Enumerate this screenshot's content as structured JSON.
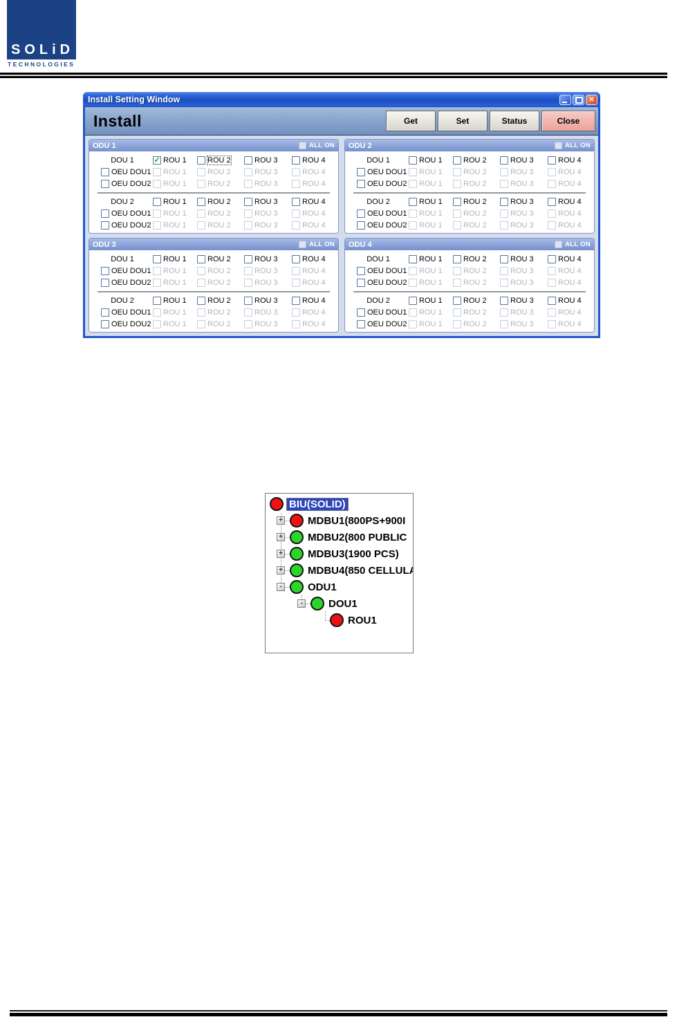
{
  "logo": {
    "brand": "SOLiD",
    "subtitle": "TECHNOLOGIES"
  },
  "window": {
    "title": "Install Setting Window",
    "heading": "Install",
    "toolbar": {
      "get": "Get",
      "set": "Set",
      "status": "Status",
      "close": "Close"
    },
    "panels": [
      {
        "title": "ODU 1",
        "all_on": "ALL ON",
        "groups": [
          {
            "dou": "DOU 1",
            "rou": [
              {
                "label": "ROU 1",
                "checked": true,
                "focused": false
              },
              {
                "label": "ROU 2",
                "checked": false,
                "focused": true
              },
              {
                "label": "ROU 3",
                "checked": false,
                "focused": false
              },
              {
                "label": "ROU 4",
                "checked": false,
                "focused": false
              }
            ],
            "oeu": [
              {
                "label": "OEU DOU1",
                "checked": false,
                "rou": [
                  {
                    "label": "ROU 1"
                  },
                  {
                    "label": "ROU 2"
                  },
                  {
                    "label": "ROU 3"
                  },
                  {
                    "label": "ROU 4"
                  }
                ]
              },
              {
                "label": "OEU DOU2",
                "checked": false,
                "rou": [
                  {
                    "label": "ROU 1"
                  },
                  {
                    "label": "ROU 2"
                  },
                  {
                    "label": "ROU 3"
                  },
                  {
                    "label": "ROU 4"
                  }
                ]
              }
            ]
          },
          {
            "dou": "DOU 2",
            "rou": [
              {
                "label": "ROU 1",
                "checked": false,
                "focused": false
              },
              {
                "label": "ROU 2",
                "checked": false,
                "focused": false
              },
              {
                "label": "ROU 3",
                "checked": false,
                "focused": false
              },
              {
                "label": "ROU 4",
                "checked": false,
                "focused": false
              }
            ],
            "oeu": [
              {
                "label": "OEU DOU1",
                "checked": false,
                "rou": [
                  {
                    "label": "ROU 1"
                  },
                  {
                    "label": "ROU 2"
                  },
                  {
                    "label": "ROU 3"
                  },
                  {
                    "label": "ROU 4"
                  }
                ]
              },
              {
                "label": "OEU DOU2",
                "checked": false,
                "rou": [
                  {
                    "label": "ROU 1"
                  },
                  {
                    "label": "ROU 2"
                  },
                  {
                    "label": "ROU 3"
                  },
                  {
                    "label": "ROU 4"
                  }
                ]
              }
            ]
          }
        ]
      },
      {
        "title": "ODU 2",
        "all_on": "ALL ON",
        "groups": [
          {
            "dou": "DOU 1",
            "rou": [
              {
                "label": "ROU 1",
                "checked": false,
                "focused": false
              },
              {
                "label": "ROU 2",
                "checked": false,
                "focused": false
              },
              {
                "label": "ROU 3",
                "checked": false,
                "focused": false
              },
              {
                "label": "ROU 4",
                "checked": false,
                "focused": false
              }
            ],
            "oeu": [
              {
                "label": "OEU DOU1",
                "checked": false,
                "rou": [
                  {
                    "label": "ROU 1"
                  },
                  {
                    "label": "ROU 2"
                  },
                  {
                    "label": "ROU 3"
                  },
                  {
                    "label": "ROU 4"
                  }
                ]
              },
              {
                "label": "OEU DOU2",
                "checked": false,
                "rou": [
                  {
                    "label": "ROU 1"
                  },
                  {
                    "label": "ROU 2"
                  },
                  {
                    "label": "ROU 3"
                  },
                  {
                    "label": "ROU 4"
                  }
                ]
              }
            ]
          },
          {
            "dou": "DOU 2",
            "rou": [
              {
                "label": "ROU 1",
                "checked": false,
                "focused": false
              },
              {
                "label": "ROU 2",
                "checked": false,
                "focused": false
              },
              {
                "label": "ROU 3",
                "checked": false,
                "focused": false
              },
              {
                "label": "ROU 4",
                "checked": false,
                "focused": false
              }
            ],
            "oeu": [
              {
                "label": "OEU DOU1",
                "checked": false,
                "rou": [
                  {
                    "label": "ROU 1"
                  },
                  {
                    "label": "ROU 2"
                  },
                  {
                    "label": "ROU 3"
                  },
                  {
                    "label": "ROU 4"
                  }
                ]
              },
              {
                "label": "OEU DOU2",
                "checked": false,
                "rou": [
                  {
                    "label": "ROU 1"
                  },
                  {
                    "label": "ROU 2"
                  },
                  {
                    "label": "ROU 3"
                  },
                  {
                    "label": "ROU 4"
                  }
                ]
              }
            ]
          }
        ]
      },
      {
        "title": "ODU 3",
        "all_on": "ALL ON",
        "groups": [
          {
            "dou": "DOU 1",
            "rou": [
              {
                "label": "ROU 1",
                "checked": false,
                "focused": false
              },
              {
                "label": "ROU 2",
                "checked": false,
                "focused": false
              },
              {
                "label": "ROU 3",
                "checked": false,
                "focused": false
              },
              {
                "label": "ROU 4",
                "checked": false,
                "focused": false
              }
            ],
            "oeu": [
              {
                "label": "OEU DOU1",
                "checked": false,
                "rou": [
                  {
                    "label": "ROU 1"
                  },
                  {
                    "label": "ROU 2"
                  },
                  {
                    "label": "ROU 3"
                  },
                  {
                    "label": "ROU 4"
                  }
                ]
              },
              {
                "label": "OEU DOU2",
                "checked": false,
                "rou": [
                  {
                    "label": "ROU 1"
                  },
                  {
                    "label": "ROU 2"
                  },
                  {
                    "label": "ROU 3"
                  },
                  {
                    "label": "ROU 4"
                  }
                ]
              }
            ]
          },
          {
            "dou": "DOU 2",
            "rou": [
              {
                "label": "ROU 1",
                "checked": false,
                "focused": false
              },
              {
                "label": "ROU 2",
                "checked": false,
                "focused": false
              },
              {
                "label": "ROU 3",
                "checked": false,
                "focused": false
              },
              {
                "label": "ROU 4",
                "checked": false,
                "focused": false
              }
            ],
            "oeu": [
              {
                "label": "OEU DOU1",
                "checked": false,
                "rou": [
                  {
                    "label": "ROU 1"
                  },
                  {
                    "label": "ROU 2"
                  },
                  {
                    "label": "ROU 3"
                  },
                  {
                    "label": "ROU 4"
                  }
                ]
              },
              {
                "label": "OEU DOU2",
                "checked": false,
                "rou": [
                  {
                    "label": "ROU 1"
                  },
                  {
                    "label": "ROU 2"
                  },
                  {
                    "label": "ROU 3"
                  },
                  {
                    "label": "ROU 4"
                  }
                ]
              }
            ]
          }
        ]
      },
      {
        "title": "ODU 4",
        "all_on": "ALL ON",
        "groups": [
          {
            "dou": "DOU 1",
            "rou": [
              {
                "label": "ROU 1",
                "checked": false,
                "focused": false
              },
              {
                "label": "ROU 2",
                "checked": false,
                "focused": false
              },
              {
                "label": "ROU 3",
                "checked": false,
                "focused": false
              },
              {
                "label": "ROU 4",
                "checked": false,
                "focused": false
              }
            ],
            "oeu": [
              {
                "label": "OEU DOU1",
                "checked": false,
                "rou": [
                  {
                    "label": "ROU 1"
                  },
                  {
                    "label": "ROU 2"
                  },
                  {
                    "label": "ROU 3"
                  },
                  {
                    "label": "ROU 4"
                  }
                ]
              },
              {
                "label": "OEU DOU2",
                "checked": false,
                "rou": [
                  {
                    "label": "ROU 1"
                  },
                  {
                    "label": "ROU 2"
                  },
                  {
                    "label": "ROU 3"
                  },
                  {
                    "label": "ROU 4"
                  }
                ]
              }
            ]
          },
          {
            "dou": "DOU 2",
            "rou": [
              {
                "label": "ROU 1",
                "checked": false,
                "focused": false
              },
              {
                "label": "ROU 2",
                "checked": false,
                "focused": false
              },
              {
                "label": "ROU 3",
                "checked": false,
                "focused": false
              },
              {
                "label": "ROU 4",
                "checked": false,
                "focused": false
              }
            ],
            "oeu": [
              {
                "label": "OEU DOU1",
                "checked": false,
                "rou": [
                  {
                    "label": "ROU 1"
                  },
                  {
                    "label": "ROU 2"
                  },
                  {
                    "label": "ROU 3"
                  },
                  {
                    "label": "ROU 4"
                  }
                ]
              },
              {
                "label": "OEU DOU2",
                "checked": false,
                "rou": [
                  {
                    "label": "ROU 1"
                  },
                  {
                    "label": "ROU 2"
                  },
                  {
                    "label": "ROU 3"
                  },
                  {
                    "label": "ROU 4"
                  }
                ]
              }
            ]
          }
        ]
      }
    ]
  },
  "tree": {
    "items": [
      {
        "label": "BIU(SOLID)",
        "status": "red",
        "depth": 0,
        "expander": "",
        "selected": true
      },
      {
        "label": "MDBU1(800PS+900I",
        "status": "red",
        "depth": 1,
        "expander": "+",
        "selected": false
      },
      {
        "label": "MDBU2(800 PUBLIC",
        "status": "green",
        "depth": 1,
        "expander": "+",
        "selected": false
      },
      {
        "label": "MDBU3(1900 PCS)",
        "status": "green",
        "depth": 1,
        "expander": "+",
        "selected": false
      },
      {
        "label": "MDBU4(850 CELLULA",
        "status": "green",
        "depth": 1,
        "expander": "+",
        "selected": false
      },
      {
        "label": "ODU1",
        "status": "green",
        "depth": 1,
        "expander": "-",
        "selected": false
      },
      {
        "label": "DOU1",
        "status": "green",
        "depth": 2,
        "expander": "-",
        "selected": false
      },
      {
        "label": "ROU1",
        "status": "red",
        "depth": 3,
        "expander": "",
        "selected": false
      }
    ]
  },
  "colors": {
    "logo_blue": "#1a4284",
    "titlebar_blue": "#1c4fc0",
    "window_border": "#2257c8",
    "content_bg": "#d4dcee",
    "panel_header": "#7590cc",
    "check_green": "#1ba11b",
    "close_button_pink": "#eba29a",
    "status_red": "#ef1215",
    "status_green": "#2ad62a",
    "selection_blue": "#2b45bc"
  }
}
